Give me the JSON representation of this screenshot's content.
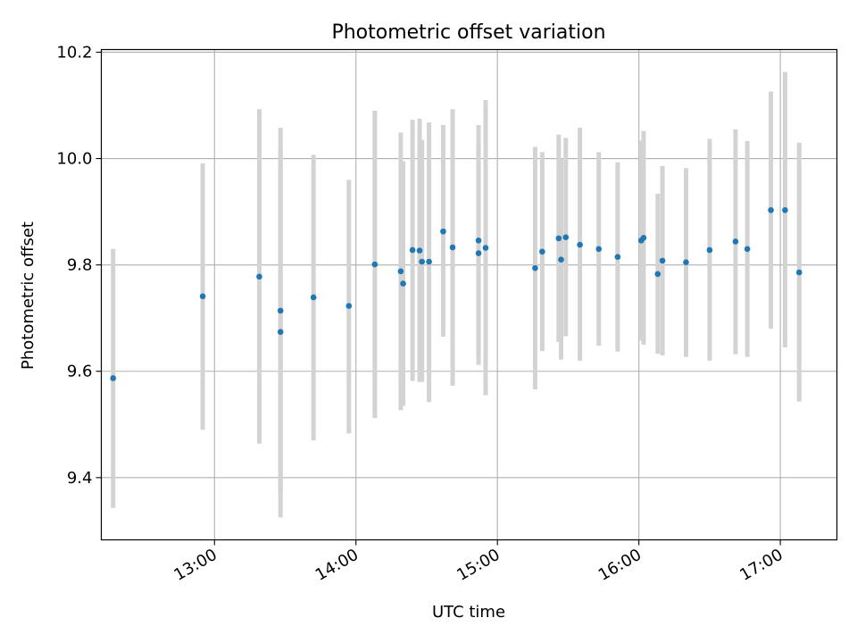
{
  "chart_data": {
    "type": "scatter",
    "title": "Photometric offset variation",
    "xlabel": "UTC time",
    "ylabel": "Photometric offset",
    "x_ticks": [
      "13:00",
      "14:00",
      "15:00",
      "16:00",
      "17:00"
    ],
    "y_ticks": [
      "9.4",
      "9.6",
      "9.8",
      "10.0",
      "10.2"
    ],
    "xlim": [
      "12:12",
      "17:24"
    ],
    "ylim": [
      9.283,
      10.205
    ],
    "grid": true,
    "legend": "none",
    "colors": {
      "point": "#1f77b4",
      "errorbar": "#d3d3d3",
      "grid": "#b0b0b0"
    },
    "points": [
      {
        "t": "12:17",
        "y": 9.587,
        "lo": 9.343,
        "hi": 9.83
      },
      {
        "t": "12:55",
        "y": 9.741,
        "lo": 9.49,
        "hi": 9.991
      },
      {
        "t": "13:19",
        "y": 9.778,
        "lo": 9.464,
        "hi": 10.093
      },
      {
        "t": "13:28",
        "y": 9.674,
        "lo": 9.37,
        "hi": 10.022
      },
      {
        "t": "13:28",
        "y": 9.714,
        "lo": 9.325,
        "hi": 10.058
      },
      {
        "t": "13:42",
        "y": 9.739,
        "lo": 9.47,
        "hi": 10.007
      },
      {
        "t": "13:57",
        "y": 9.723,
        "lo": 9.483,
        "hi": 9.96
      },
      {
        "t": "14:08",
        "y": 9.801,
        "lo": 9.512,
        "hi": 10.09
      },
      {
        "t": "14:19",
        "y": 9.788,
        "lo": 9.527,
        "hi": 10.049
      },
      {
        "t": "14:20",
        "y": 9.765,
        "lo": 9.535,
        "hi": 9.995
      },
      {
        "t": "14:24",
        "y": 9.828,
        "lo": 9.582,
        "hi": 10.073
      },
      {
        "t": "14:27",
        "y": 9.827,
        "lo": 9.58,
        "hi": 10.075
      },
      {
        "t": "14:28",
        "y": 9.806,
        "lo": 9.58,
        "hi": 10.035
      },
      {
        "t": "14:31",
        "y": 9.806,
        "lo": 9.542,
        "hi": 10.068
      },
      {
        "t": "14:37",
        "y": 9.863,
        "lo": 9.665,
        "hi": 10.063
      },
      {
        "t": "14:41",
        "y": 9.833,
        "lo": 9.573,
        "hi": 10.093
      },
      {
        "t": "14:52",
        "y": 9.822,
        "lo": 9.612,
        "hi": 10.032
      },
      {
        "t": "14:52",
        "y": 9.846,
        "lo": 9.624,
        "hi": 10.063
      },
      {
        "t": "14:55",
        "y": 9.832,
        "lo": 9.555,
        "hi": 10.11
      },
      {
        "t": "15:16",
        "y": 9.794,
        "lo": 9.566,
        "hi": 10.022
      },
      {
        "t": "15:19",
        "y": 9.825,
        "lo": 9.638,
        "hi": 10.012
      },
      {
        "t": "15:26",
        "y": 9.85,
        "lo": 9.655,
        "hi": 10.045
      },
      {
        "t": "15:27",
        "y": 9.81,
        "lo": 9.622,
        "hi": 10.0
      },
      {
        "t": "15:29",
        "y": 9.852,
        "lo": 9.666,
        "hi": 10.039
      },
      {
        "t": "15:35",
        "y": 9.838,
        "lo": 9.62,
        "hi": 10.058
      },
      {
        "t": "15:43",
        "y": 9.83,
        "lo": 9.648,
        "hi": 10.012
      },
      {
        "t": "15:51",
        "y": 9.815,
        "lo": 9.637,
        "hi": 9.993
      },
      {
        "t": "16:01",
        "y": 9.846,
        "lo": 9.658,
        "hi": 10.034
      },
      {
        "t": "16:02",
        "y": 9.851,
        "lo": 9.65,
        "hi": 10.052
      },
      {
        "t": "16:08",
        "y": 9.783,
        "lo": 9.633,
        "hi": 9.934
      },
      {
        "t": "16:10",
        "y": 9.808,
        "lo": 9.63,
        "hi": 9.986
      },
      {
        "t": "16:20",
        "y": 9.805,
        "lo": 9.627,
        "hi": 9.982
      },
      {
        "t": "16:30",
        "y": 9.828,
        "lo": 9.62,
        "hi": 10.037
      },
      {
        "t": "16:41",
        "y": 9.844,
        "lo": 9.632,
        "hi": 10.055
      },
      {
        "t": "16:46",
        "y": 9.83,
        "lo": 9.627,
        "hi": 10.033
      },
      {
        "t": "16:56",
        "y": 9.903,
        "lo": 9.68,
        "hi": 10.126
      },
      {
        "t": "17:02",
        "y": 9.903,
        "lo": 9.645,
        "hi": 10.163
      },
      {
        "t": "17:08",
        "y": 9.786,
        "lo": 9.543,
        "hi": 10.03
      }
    ]
  }
}
